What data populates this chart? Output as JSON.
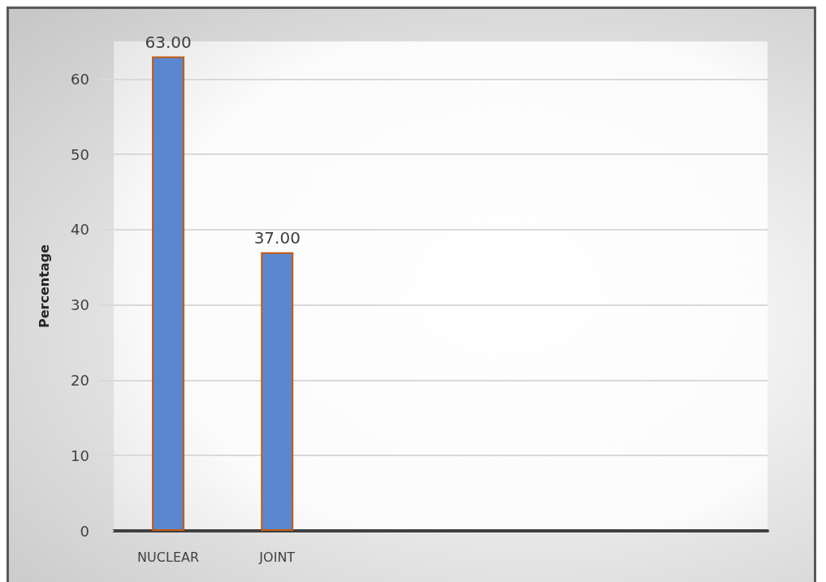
{
  "chart_data": {
    "type": "bar",
    "ylabel": "Percentage",
    "categories": [
      "NUCLEAR",
      "JOINT"
    ],
    "values": [
      63,
      37
    ],
    "value_labels": [
      "63.00",
      "37.00"
    ],
    "color": "#5b87cf",
    "ylim": [
      0,
      65
    ],
    "yticks": [
      0,
      10,
      20,
      30,
      40,
      50,
      60
    ],
    "grid": "y"
  }
}
